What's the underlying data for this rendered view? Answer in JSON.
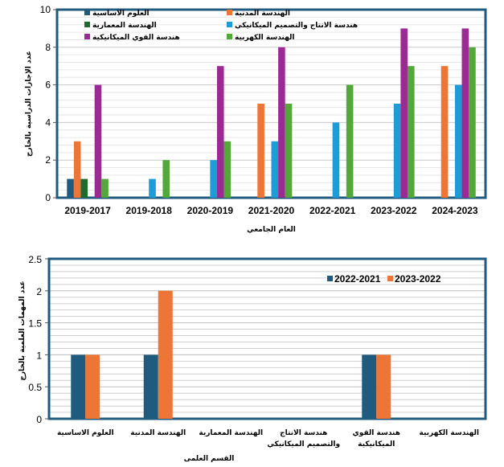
{
  "chart_data": [
    {
      "type": "bar",
      "title": "",
      "xlabel": "العام الجامعي",
      "ylabel": "عدد الإجازات الدراسية بالخارج",
      "ylim": [
        0,
        10
      ],
      "yticks": [
        "0",
        "2",
        "4",
        "6",
        "8",
        "10"
      ],
      "grid": true,
      "legend_position": "top",
      "categories": [
        "2019-2017",
        "2019-2018",
        "2020-2019",
        "2021-2020",
        "2022-2021",
        "2023-2022",
        "2024-2023"
      ],
      "series": [
        {
          "name": "العلوم الاساسية",
          "color": "#1f5b7e",
          "values": [
            1,
            0,
            0,
            0,
            0,
            0,
            0
          ]
        },
        {
          "name": "الهندسة المدنية",
          "color": "#ed7536",
          "values": [
            3,
            0,
            0,
            5,
            0,
            0,
            7
          ]
        },
        {
          "name": "الهندسة المعمارية",
          "color": "#1e6b2e",
          "values": [
            1,
            0,
            0,
            0,
            0,
            0,
            0
          ]
        },
        {
          "name": "هندسة الانتاج والتصميم الميكانيكي",
          "color": "#1d9cd8",
          "values": [
            0,
            1,
            2,
            3,
            4,
            5,
            6
          ]
        },
        {
          "name": "هندسة القوي الميكانيكية",
          "color": "#9b2b93",
          "values": [
            6,
            0,
            7,
            8,
            0,
            9,
            9
          ]
        },
        {
          "name": "الهندسة الكهربية",
          "color": "#52a93a",
          "values": [
            1,
            2,
            3,
            5,
            6,
            7,
            8
          ]
        }
      ]
    },
    {
      "type": "bar",
      "title": "",
      "xlabel": "القسم العلمى",
      "ylabel": "عدد المهمات العلمية بالخارج",
      "ylim": [
        0,
        2.5
      ],
      "yticks": [
        "0",
        "0.5",
        "1",
        "1.5",
        "2",
        "2.5"
      ],
      "grid": true,
      "legend_position": "top-right",
      "categories": [
        "العلوم الاساسية",
        "الهندسة المدنية",
        "الهندسة المعمارية",
        "هندسة الانتاج|والتصميم الميكانيكي",
        "هندسة القوي|الميكانيكية",
        "الهندسة الكهربية"
      ],
      "series": [
        {
          "name": "2022-2021",
          "color": "#1f5b7e",
          "values": [
            1,
            1,
            0,
            0,
            1,
            0
          ]
        },
        {
          "name": "2023-2022",
          "color": "#ed7536",
          "values": [
            1,
            2,
            0,
            0,
            1,
            0
          ]
        }
      ]
    }
  ],
  "colors": {
    "frame": "#1f5b7e",
    "grid_major": "#c8c8c8",
    "grid_minor": "#e6e6e6"
  }
}
